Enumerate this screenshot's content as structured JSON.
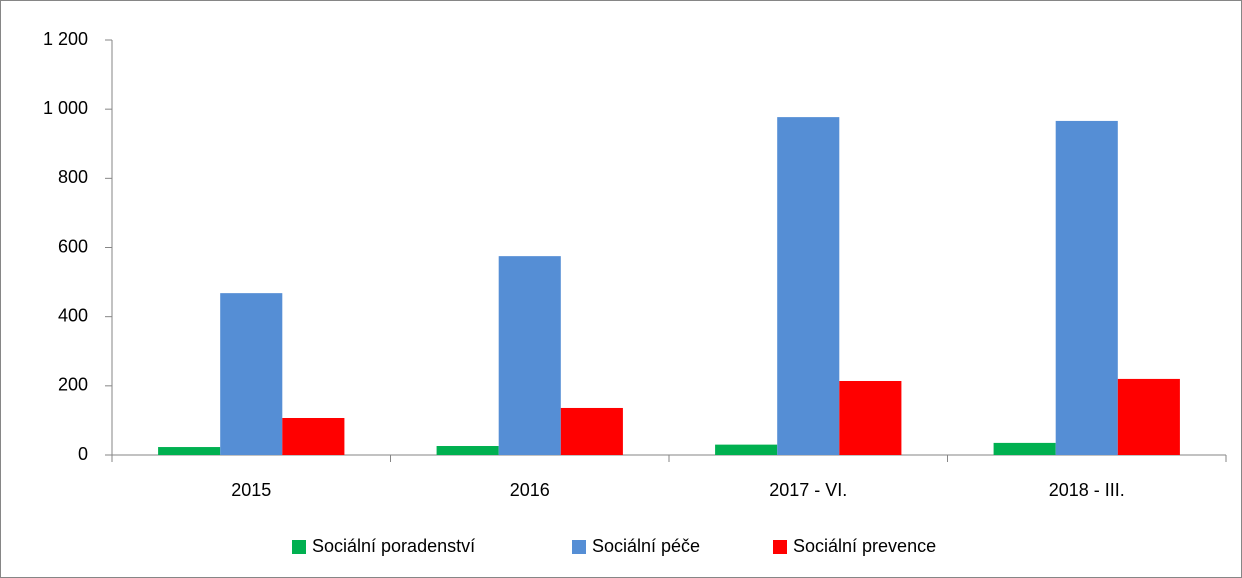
{
  "chart_data": {
    "type": "bar",
    "categories": [
      "2015",
      "2016",
      "2017 - VI.",
      "2018 - III."
    ],
    "series": [
      {
        "name": "Sociální poradenství",
        "color": "#00b050",
        "values": [
          23,
          26,
          30,
          35
        ]
      },
      {
        "name": "Sociální péče",
        "color": "#558ed5",
        "values": [
          468,
          575,
          977,
          966
        ]
      },
      {
        "name": "Sociální prevence",
        "color": "#ff0000",
        "values": [
          107,
          136,
          214,
          220
        ]
      }
    ],
    "ylim": [
      0,
      1200
    ],
    "yticks": [
      0,
      200,
      400,
      600,
      800,
      {
        "value": 1000,
        "label": "1 000"
      },
      {
        "value": 1200,
        "label": "1 200"
      }
    ],
    "legend": "bottom"
  }
}
